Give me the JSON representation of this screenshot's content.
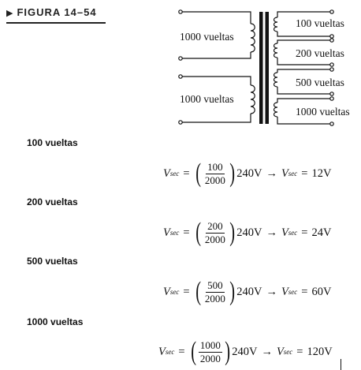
{
  "figure": {
    "title": "FIGURA 14–54",
    "primary_windings": [
      "1000 vueltas",
      "1000 vueltas"
    ],
    "secondary_windings": [
      "100 vueltas",
      "200 vueltas",
      "500 vueltas",
      "1000 vueltas"
    ]
  },
  "cases": [
    {
      "heading": "100 vueltas",
      "lhs": "V",
      "sub": "sec",
      "num": "100",
      "den": "2000",
      "factor": "240V",
      "result": "12V"
    },
    {
      "heading": "200 vueltas",
      "lhs": "V",
      "sub": "sec",
      "num": "200",
      "den": "2000",
      "factor": "240V",
      "result": "24V"
    },
    {
      "heading": "500 vueltas",
      "lhs": "V",
      "sub": "sec",
      "num": "500",
      "den": "2000",
      "factor": "240V",
      "result": "60V"
    },
    {
      "heading": "1000 vueltas",
      "lhs": "V",
      "sub": "sec",
      "num": "1000",
      "den": "2000",
      "factor": "240V",
      "result": "120V"
    }
  ],
  "symbols": {
    "equals": "=",
    "arrow": "→",
    "triangle": "▶"
  }
}
